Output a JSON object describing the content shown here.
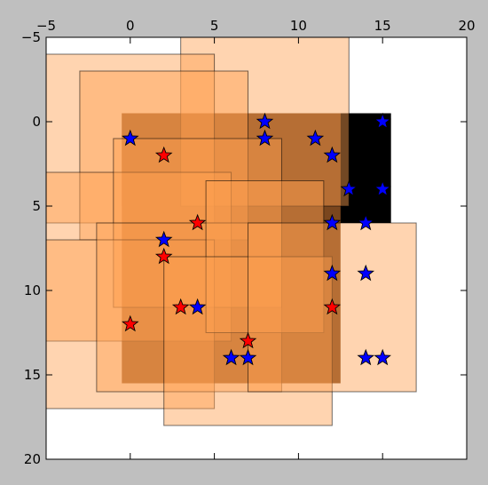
{
  "chart_data": {
    "type": "scatter",
    "title": "",
    "xlabel": "",
    "ylabel": "",
    "xlim": [
      -5,
      20
    ],
    "ylim": [
      20,
      -5
    ],
    "y_inverted": true,
    "x_axis_position": "top",
    "grid": false,
    "legend": "none",
    "xticks": [
      -5,
      0,
      5,
      10,
      15,
      20
    ],
    "yticks": [
      -5,
      0,
      5,
      10,
      15,
      20
    ],
    "xtick_labels": [
      "−5",
      "0",
      "5",
      "10",
      "15",
      "20"
    ],
    "ytick_labels": [
      "−5",
      "0",
      "5",
      "10",
      "15",
      "20"
    ],
    "background_rects": [
      {
        "x0": 12,
        "y0": -0.5,
        "x1": 15.5,
        "y1": 6.0,
        "color": "#000000",
        "alpha": 1.0
      },
      {
        "x0": -0.5,
        "y0": -0.5,
        "x1": 12.5,
        "y1": 15.5,
        "color": "#7a461e",
        "alpha": 1.0
      },
      {
        "x0": -0.5,
        "y0": -0.5,
        "x1": 12.5,
        "y1": 5.0,
        "color": "#7a461e",
        "alpha": 1.0
      }
    ],
    "overlay_rects": [
      {
        "x0": 3,
        "y0": -5,
        "x1": 13,
        "y1": 5
      },
      {
        "x0": -5,
        "y0": -4,
        "x1": 5,
        "y1": 6
      },
      {
        "x0": -3,
        "y0": -3,
        "x1": 7,
        "y1": 7
      },
      {
        "x0": -5,
        "y0": 3,
        "x1": 6,
        "y1": 13
      },
      {
        "x0": -1,
        "y0": 1,
        "x1": 9,
        "y1": 11
      },
      {
        "x0": -5,
        "y0": 7,
        "x1": 5,
        "y1": 17
      },
      {
        "x0": -2,
        "y0": 6,
        "x1": 9,
        "y1": 16
      },
      {
        "x0": 4.5,
        "y0": 3.5,
        "x1": 11.5,
        "y1": 12.5
      },
      {
        "x0": 2,
        "y0": 8,
        "x1": 12,
        "y1": 18
      },
      {
        "x0": 7,
        "y0": 6,
        "x1": 17,
        "y1": 16
      }
    ],
    "overlay_color": "#ffa050",
    "overlay_alpha": 0.45,
    "series": [
      {
        "color": "#ff0000",
        "marker": "star",
        "points": [
          [
            2,
            2
          ],
          [
            4,
            6
          ],
          [
            2,
            8
          ],
          [
            3,
            11
          ],
          [
            0,
            12
          ],
          [
            7,
            13
          ],
          [
            12,
            11
          ]
        ]
      },
      {
        "color": "#0000ff",
        "marker": "star",
        "points": [
          [
            0,
            1
          ],
          [
            8,
            0
          ],
          [
            8,
            1
          ],
          [
            11,
            1
          ],
          [
            15,
            0
          ],
          [
            12,
            2
          ],
          [
            13,
            4
          ],
          [
            15,
            4
          ],
          [
            12,
            6
          ],
          [
            14,
            6
          ],
          [
            2,
            7
          ],
          [
            12,
            9
          ],
          [
            14,
            9
          ],
          [
            4,
            11
          ],
          [
            6,
            14
          ],
          [
            7,
            14
          ],
          [
            14,
            14
          ],
          [
            15,
            14
          ]
        ]
      }
    ]
  }
}
